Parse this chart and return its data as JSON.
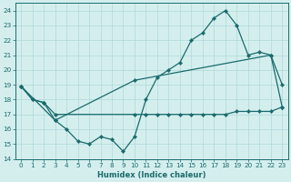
{
  "line1_x": [
    0,
    1,
    2,
    3,
    4,
    5,
    6,
    7,
    8,
    9,
    10,
    11,
    12,
    13,
    14,
    15,
    16,
    17,
    18,
    19,
    20,
    21,
    22,
    23
  ],
  "line1_y": [
    18.9,
    18.0,
    17.8,
    16.6,
    16.0,
    15.2,
    15.0,
    15.5,
    15.3,
    14.5,
    15.5,
    18.0,
    19.5,
    20.0,
    20.5,
    22.0,
    22.5,
    23.5,
    24.0,
    23.0,
    21.0,
    21.2,
    21.0,
    19.0
  ],
  "line2_x": [
    0,
    3,
    10,
    22,
    23
  ],
  "line2_y": [
    18.9,
    16.6,
    19.3,
    21.0,
    17.5
  ],
  "line3_x": [
    0,
    1,
    2,
    3,
    10,
    11,
    12,
    13,
    14,
    15,
    16,
    17,
    18,
    19,
    20,
    21,
    22,
    23
  ],
  "line3_y": [
    18.9,
    18.0,
    17.8,
    17.0,
    17.0,
    17.0,
    17.0,
    17.0,
    17.0,
    17.0,
    17.0,
    17.0,
    17.0,
    17.2,
    17.2,
    17.2,
    17.2,
    17.5
  ],
  "color": "#1a6b6b",
  "bg_color": "#d4eeee",
  "grid_color": "#b0d8d8",
  "xlabel": "Humidex (Indice chaleur)",
  "xlim": [
    -0.5,
    23.5
  ],
  "ylim": [
    14,
    24.5
  ],
  "xticks": [
    0,
    1,
    2,
    3,
    4,
    5,
    6,
    7,
    8,
    9,
    10,
    11,
    12,
    13,
    14,
    15,
    16,
    17,
    18,
    19,
    20,
    21,
    22,
    23
  ],
  "yticks": [
    14,
    15,
    16,
    17,
    18,
    19,
    20,
    21,
    22,
    23,
    24
  ],
  "xlabel_fontsize": 6.0,
  "tick_fontsize": 5.2
}
